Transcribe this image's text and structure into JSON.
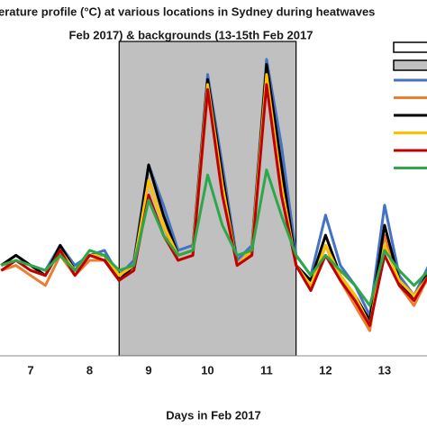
{
  "chart_data": {
    "type": "line",
    "title": "erature profile (°C) at various locations in Sydney during heatwaves",
    "subtitle": "Feb 2017) & backgrounds (13-15th Feb 2017",
    "x_label": "Days in Feb 2017",
    "x": [
      6.5,
      6.75,
      7,
      7.25,
      7.5,
      7.75,
      8,
      8.25,
      8.5,
      8.75,
      9,
      9.25,
      9.5,
      9.75,
      10,
      10.25,
      10.5,
      10.75,
      11,
      11.25,
      11.5,
      11.75,
      12,
      12.25,
      12.5,
      12.75,
      13,
      13.25,
      13.5,
      13.75
    ],
    "xlim": [
      6.48,
      13.72
    ],
    "xticks": [
      7,
      8,
      9,
      10,
      11,
      12,
      13
    ],
    "ylim": [
      15,
      47
    ],
    "highlight_x": [
      8.5,
      11.5
    ],
    "highlight_color": "#c0c0c0",
    "series": [
      {
        "color": "#4472c4",
        "values": [
          24,
          25,
          24,
          23.5,
          26,
          24,
          25,
          25.5,
          23,
          24.5,
          34,
          30,
          25.5,
          26,
          43,
          34,
          24.5,
          26,
          44.5,
          36,
          25,
          23,
          29,
          24,
          22,
          19,
          30,
          23,
          21,
          24
        ]
      },
      {
        "color": "#ed7d31",
        "values": [
          23.5,
          24,
          23,
          22,
          25,
          23,
          24.5,
          24.5,
          22.5,
          24,
          32.5,
          28,
          24.5,
          25,
          41,
          33,
          24,
          25,
          44,
          33,
          24,
          21.5,
          26,
          22.5,
          20,
          17.5,
          27,
          22,
          20,
          23
        ]
      },
      {
        "color": "#000000",
        "values": [
          24,
          25,
          24,
          23,
          26,
          23.5,
          25,
          25,
          22.5,
          24,
          34,
          29,
          25,
          25.5,
          42.5,
          33,
          24,
          25.5,
          44,
          34,
          24,
          22.5,
          27,
          23,
          21,
          18.5,
          28,
          22.5,
          20.5,
          23.5
        ]
      },
      {
        "color": "#ffc000",
        "values": [
          24,
          24.5,
          23.5,
          23,
          25.5,
          23.5,
          25,
          25,
          23,
          24,
          32.5,
          28,
          25,
          25.5,
          42,
          32,
          24,
          25.5,
          43,
          32,
          24,
          22,
          26,
          23,
          21,
          18,
          26,
          22.5,
          21,
          23
        ]
      },
      {
        "color": "#c00000",
        "values": [
          23.5,
          24.5,
          23.5,
          23,
          25.5,
          23,
          25,
          24.5,
          22.5,
          23.5,
          31,
          27,
          24.5,
          25,
          41.5,
          31,
          24,
          25,
          42,
          31,
          24,
          21.5,
          25,
          22.5,
          20.5,
          18,
          25,
          22,
          20.5,
          23
        ]
      },
      {
        "color": "#2ca84a",
        "values": [
          24,
          24.5,
          24,
          23.5,
          25,
          23.5,
          25.5,
          25,
          23.5,
          24,
          30.5,
          27,
          25,
          25.5,
          33,
          28,
          25,
          25.5,
          33.5,
          29,
          25,
          23,
          25,
          23.5,
          22,
          20,
          25.5,
          23.5,
          22,
          23.5
        ]
      }
    ]
  }
}
